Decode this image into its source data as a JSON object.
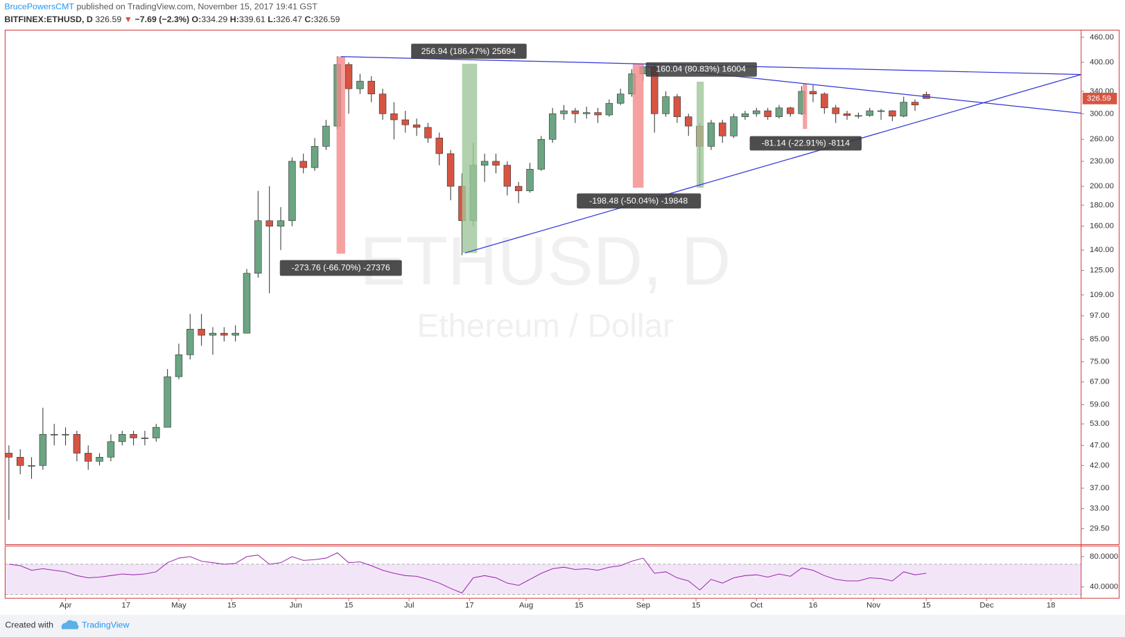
{
  "header": {
    "author": "BrucePowersCMT",
    "published": "published on TradingView.com, November 15, 2017 19:41 GST",
    "symbol": "BITFINEX:ETHUSD, D",
    "arrow": "▼",
    "change": "−7.69 (−2.3%)",
    "o_label": "O:",
    "h_label": "H:",
    "l_label": "L:",
    "c_label": "C:"
  },
  "footer": {
    "created": "Created with",
    "brand": "TradingView"
  },
  "chart_data": {
    "type": "candlestick",
    "log": true,
    "watermark": "ETHUSD, D",
    "watermark_sub": "Ethereum / Dollar",
    "up_color": "#6ba583",
    "down_color": "#d75442",
    "x": [
      "2017-03-17",
      "2017-03-20",
      "2017-03-23",
      "2017-03-26",
      "2017-03-29",
      "2017-04-01",
      "2017-04-04",
      "2017-04-07",
      "2017-04-10",
      "2017-04-13",
      "2017-04-16",
      "2017-04-19",
      "2017-04-22",
      "2017-04-25",
      "2017-04-28",
      "2017-05-01",
      "2017-05-04",
      "2017-05-07",
      "2017-05-10",
      "2017-05-13",
      "2017-05-16",
      "2017-05-19",
      "2017-05-22",
      "2017-05-25",
      "2017-05-28",
      "2017-05-31",
      "2017-06-03",
      "2017-06-06",
      "2017-06-09",
      "2017-06-12",
      "2017-06-15",
      "2017-06-18",
      "2017-06-21",
      "2017-06-24",
      "2017-06-27",
      "2017-06-30",
      "2017-07-03",
      "2017-07-06",
      "2017-07-09",
      "2017-07-12",
      "2017-07-15",
      "2017-07-18",
      "2017-07-21",
      "2017-07-24",
      "2017-07-27",
      "2017-07-30",
      "2017-08-02",
      "2017-08-05",
      "2017-08-08",
      "2017-08-11",
      "2017-08-14",
      "2017-08-17",
      "2017-08-20",
      "2017-08-23",
      "2017-08-26",
      "2017-08-29",
      "2017-09-01",
      "2017-09-04",
      "2017-09-07",
      "2017-09-10",
      "2017-09-13",
      "2017-09-16",
      "2017-09-19",
      "2017-09-22",
      "2017-09-25",
      "2017-09-28",
      "2017-10-01",
      "2017-10-04",
      "2017-10-07",
      "2017-10-10",
      "2017-10-13",
      "2017-10-16",
      "2017-10-19",
      "2017-10-22",
      "2017-10-25",
      "2017-10-28",
      "2017-10-31",
      "2017-11-03",
      "2017-11-06",
      "2017-11-09",
      "2017-11-12",
      "2017-11-15"
    ],
    "open": [
      45,
      44,
      42,
      42,
      50,
      50,
      50,
      45,
      43,
      44,
      48,
      50,
      49,
      49,
      52,
      69,
      78,
      90,
      87,
      88,
      87,
      88,
      123,
      165,
      160,
      165,
      230,
      222,
      250,
      280,
      395,
      345,
      360,
      335,
      300,
      290,
      282,
      278,
      262,
      240,
      200,
      165,
      225,
      230,
      225,
      200,
      195,
      220,
      260,
      300,
      305,
      300,
      302,
      298,
      318,
      335,
      375,
      390,
      300,
      330,
      295,
      280,
      250,
      285,
      265,
      295,
      300,
      305,
      295,
      310,
      300,
      340,
      335,
      310,
      300,
      297,
      297,
      305,
      305,
      296,
      320,
      334.29
    ],
    "high": [
      47,
      46,
      44,
      58,
      53,
      52,
      51,
      47,
      45,
      50,
      51,
      51,
      51,
      53,
      72,
      83,
      98,
      98,
      91,
      91,
      92,
      126,
      195,
      200,
      178,
      235,
      240,
      262,
      290,
      414,
      400,
      375,
      370,
      345,
      320,
      305,
      292,
      285,
      270,
      245,
      215,
      255,
      240,
      240,
      230,
      205,
      228,
      265,
      310,
      315,
      310,
      312,
      310,
      325,
      345,
      385,
      395,
      395,
      340,
      335,
      300,
      285,
      290,
      290,
      300,
      305,
      310,
      310,
      315,
      312,
      350,
      352,
      338,
      315,
      305,
      302,
      310,
      308,
      306,
      330,
      325,
      339.61
    ],
    "low": [
      31,
      40,
      39,
      41,
      47,
      47,
      43,
      41,
      42,
      43,
      47,
      47,
      47,
      48,
      52,
      68,
      76,
      82,
      78,
      84,
      84,
      88,
      120,
      110,
      140,
      160,
      215,
      218,
      245,
      275,
      300,
      335,
      320,
      290,
      260,
      270,
      265,
      255,
      225,
      185,
      136,
      160,
      205,
      215,
      190,
      182,
      193,
      218,
      255,
      290,
      285,
      292,
      285,
      295,
      315,
      330,
      360,
      270,
      295,
      285,
      265,
      199,
      245,
      255,
      262,
      290,
      295,
      290,
      292,
      295,
      298,
      320,
      300,
      285,
      290,
      292,
      295,
      290,
      288,
      294,
      305,
      326.47
    ],
    "close": [
      44,
      42,
      42,
      50,
      50,
      50,
      45,
      43,
      44,
      48,
      50,
      49,
      49,
      52,
      69,
      78,
      90,
      87,
      88,
      87,
      88,
      123,
      165,
      160,
      165,
      230,
      222,
      250,
      280,
      395,
      345,
      360,
      335,
      300,
      290,
      282,
      278,
      262,
      240,
      200,
      165,
      225,
      230,
      225,
      200,
      195,
      220,
      260,
      300,
      305,
      300,
      302,
      298,
      318,
      335,
      375,
      390,
      300,
      330,
      295,
      280,
      250,
      285,
      265,
      295,
      300,
      305,
      295,
      310,
      300,
      340,
      335,
      310,
      300,
      297,
      297,
      305,
      305,
      296,
      320,
      315,
      326.59
    ],
    "xlim": [
      "2017-03-16",
      "2017-12-26"
    ],
    "xticks": [
      {
        "value": "2017-04-01",
        "label": "Apr"
      },
      {
        "value": "2017-04-17",
        "label": "17"
      },
      {
        "value": "2017-05-01",
        "label": "May"
      },
      {
        "value": "2017-05-15",
        "label": "15"
      },
      {
        "value": "2017-06-01",
        "label": "Jun"
      },
      {
        "value": "2017-06-15",
        "label": "15"
      },
      {
        "value": "2017-07-01",
        "label": "Jul"
      },
      {
        "value": "2017-07-17",
        "label": "17"
      },
      {
        "value": "2017-08-01",
        "label": "Aug"
      },
      {
        "value": "2017-08-15",
        "label": "15"
      },
      {
        "value": "2017-09-01",
        "label": "Sep"
      },
      {
        "value": "2017-09-15",
        "label": "15"
      },
      {
        "value": "2017-10-01",
        "label": "Oct"
      },
      {
        "value": "2017-10-16",
        "label": "16"
      },
      {
        "value": "2017-11-01",
        "label": "Nov"
      },
      {
        "value": "2017-11-15",
        "label": "15"
      },
      {
        "value": "2017-12-01",
        "label": "Dec"
      },
      {
        "value": "2017-12-18",
        "label": "18"
      }
    ],
    "ylim": [
      27.0,
      478.8
    ],
    "yticks": [
      {
        "value": 460,
        "label": "460.00"
      },
      {
        "value": 400,
        "label": "400.00"
      },
      {
        "value": 340,
        "label": "340.00"
      },
      {
        "value": 300,
        "label": "300.00"
      },
      {
        "value": 260,
        "label": "260.00"
      },
      {
        "value": 230,
        "label": "230.00"
      },
      {
        "value": 200,
        "label": "200.00"
      },
      {
        "value": 180,
        "label": "180.00"
      },
      {
        "value": 160,
        "label": "160.00"
      },
      {
        "value": 140,
        "label": "140.00"
      },
      {
        "value": 125,
        "label": "125.00"
      },
      {
        "value": 109,
        "label": "109.00"
      },
      {
        "value": 97,
        "label": "97.00"
      },
      {
        "value": 85,
        "label": "85.00"
      },
      {
        "value": 75,
        "label": "75.00"
      },
      {
        "value": 67,
        "label": "67.00"
      },
      {
        "value": 59,
        "label": "59.00"
      },
      {
        "value": 53,
        "label": "53.00"
      },
      {
        "value": 47,
        "label": "47.00"
      },
      {
        "value": 42,
        "label": "42.00"
      },
      {
        "value": 37,
        "label": "37.00"
      },
      {
        "value": 33,
        "label": "33.00"
      },
      {
        "value": 29.5,
        "label": "29.50"
      }
    ],
    "annotations": [
      "-273.76 (-66.70%) -27376",
      "256.94 (186.47%) 25694",
      "160.04 (80.83%) 16004",
      "-198.48 (-50.04%) -19848",
      "-81.14 (-22.91%) -8114"
    ],
    "rsi": {
      "color": "#9c27b0",
      "band": [
        30,
        70
      ],
      "ylim": [
        25,
        94
      ],
      "yticks": [
        {
          "value": 80,
          "label": "80.0000"
        },
        {
          "value": 40,
          "label": "40.0000"
        }
      ],
      "values": [
        70,
        68,
        62,
        64,
        62,
        60,
        55,
        52,
        53,
        55,
        57,
        56,
        57,
        60,
        72,
        78,
        80,
        74,
        72,
        70,
        71,
        80,
        82,
        70,
        72,
        80,
        75,
        76,
        78,
        85,
        72,
        73,
        68,
        62,
        58,
        55,
        54,
        50,
        45,
        38,
        32,
        52,
        55,
        52,
        45,
        42,
        50,
        58,
        64,
        66,
        63,
        64,
        62,
        66,
        68,
        74,
        78,
        58,
        60,
        52,
        48,
        36,
        50,
        45,
        52,
        55,
        56,
        53,
        57,
        54,
        65,
        62,
        55,
        50,
        48,
        48,
        52,
        51,
        48,
        60,
        56,
        58
      ]
    }
  }
}
